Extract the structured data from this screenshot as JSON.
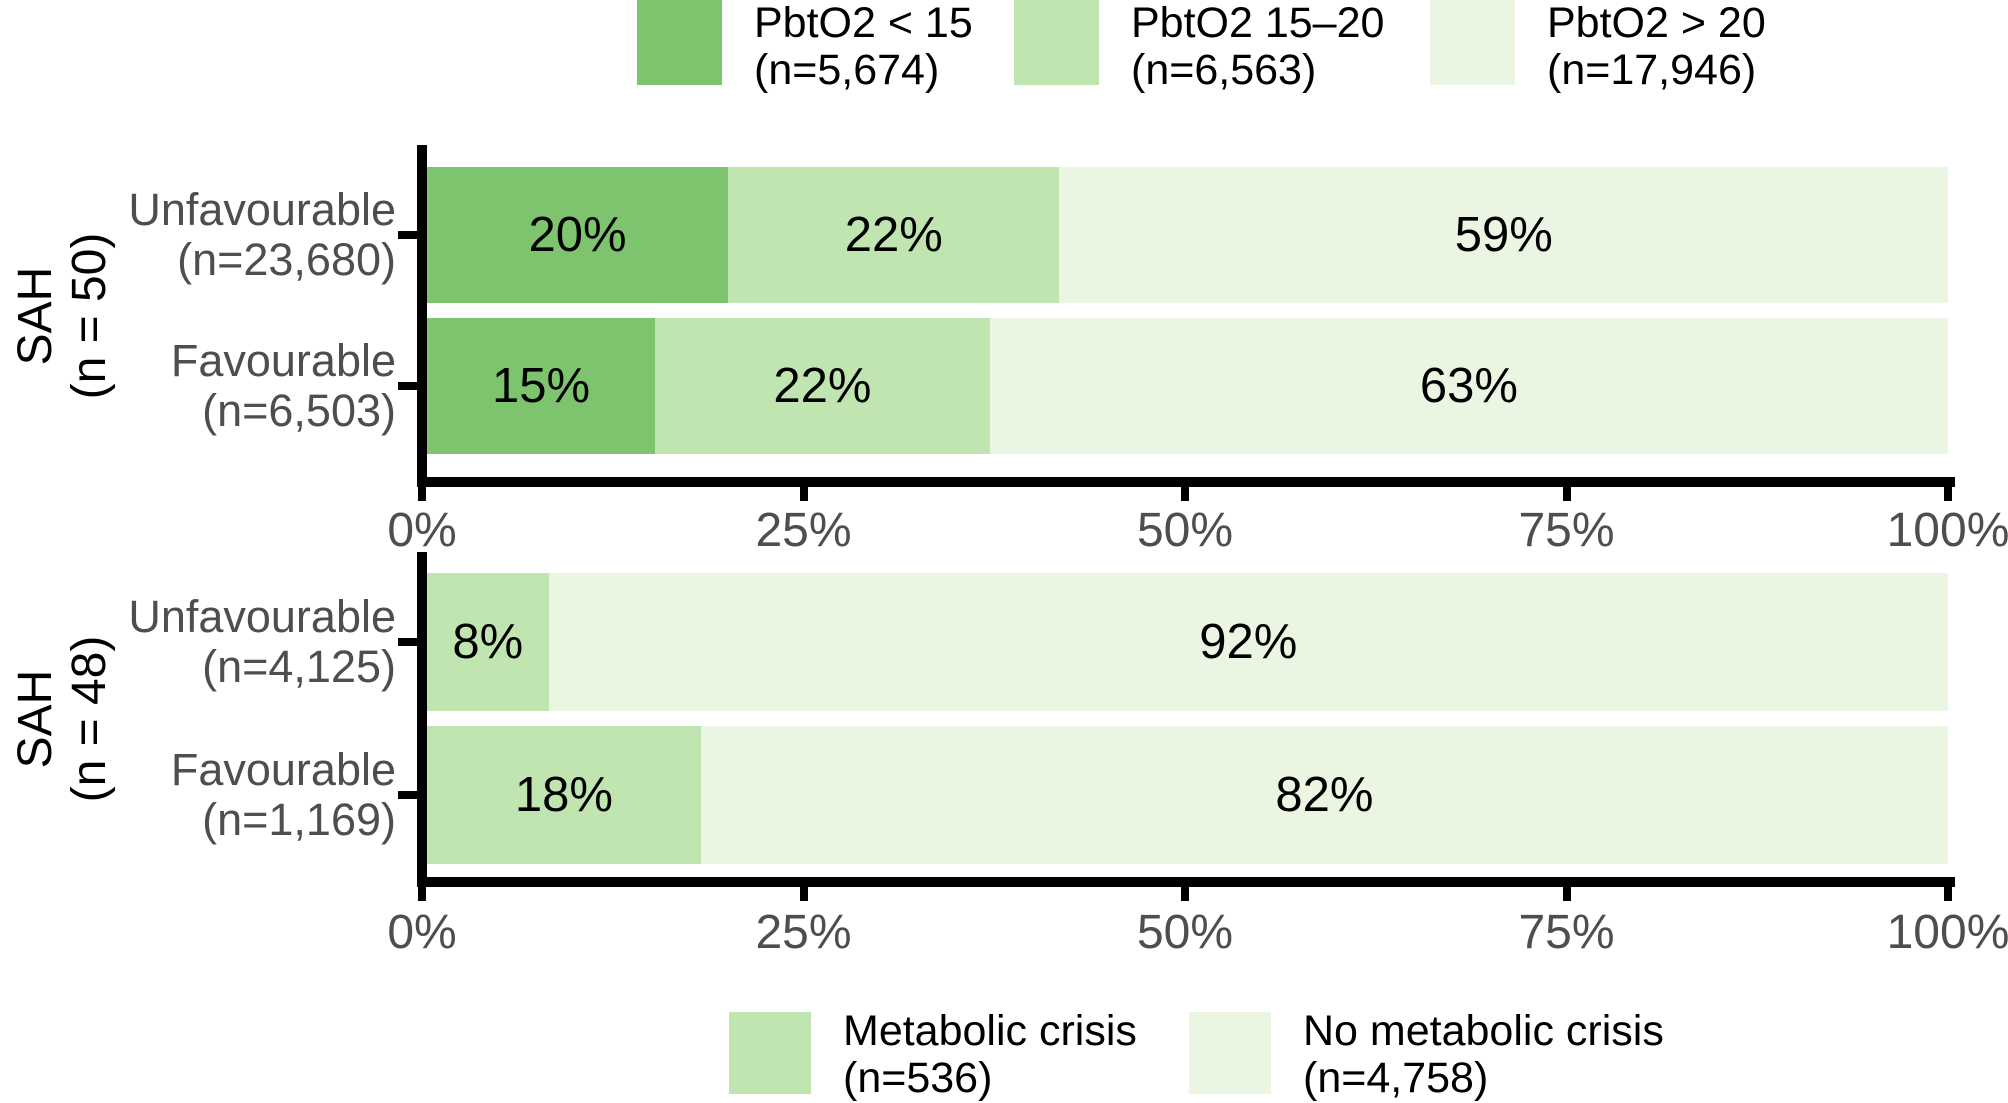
{
  "colors": {
    "pbto2_low": "#7ec46f",
    "pbto2_mid": "#c0e5b0",
    "pbto2_high": "#eaf5e2",
    "axis": "#000000",
    "muted_text": "#4e4e4e",
    "bar_label": "#000000",
    "background": "#ffffff"
  },
  "top_legend": [
    {
      "lines": [
        "PbtO2 < 15",
        "(n=5,674)"
      ],
      "color": "#7ec46f"
    },
    {
      "lines": [
        "PbtO2 15–20",
        "(n=6,563)"
      ],
      "color": "#c0e5b0"
    },
    {
      "lines": [
        "PbtO2 > 20",
        "(n=17,946)"
      ],
      "color": "#eaf5e2"
    }
  ],
  "bottom_legend": [
    {
      "lines": [
        "Metabolic crisis",
        "(n=536)"
      ],
      "color": "#c0e5b0"
    },
    {
      "lines": [
        "No metabolic crisis",
        "(n=4,758)"
      ],
      "color": "#eaf5e2"
    }
  ],
  "chart_data": [
    {
      "type": "bar",
      "subtype": "horizontal_stacked_percent",
      "group_title_lines": [
        "SAH",
        "(n = 50)"
      ],
      "categories": [
        [
          "Unfavourable",
          "(n=23,680)"
        ],
        [
          "Favourable",
          "(n=6,503)"
        ]
      ],
      "series": [
        {
          "name": "PbtO2 < 15 (n=5,674)",
          "color": "#7ec46f",
          "values": [
            20,
            15
          ]
        },
        {
          "name": "PbtO2 15–20 (n=6,563)",
          "color": "#c0e5b0",
          "values": [
            22,
            22
          ]
        },
        {
          "name": "PbtO2 > 20 (n=17,946)",
          "color": "#eaf5e2",
          "values": [
            59,
            63
          ]
        }
      ],
      "value_suffix": "%",
      "xlim": [
        0,
        100
      ],
      "x_ticks": [
        {
          "pos": 0,
          "label": "0%"
        },
        {
          "pos": 25,
          "label": "25%"
        },
        {
          "pos": 50,
          "label": "50%"
        },
        {
          "pos": 75,
          "label": "75%"
        },
        {
          "pos": 100,
          "label": "100%"
        }
      ]
    },
    {
      "type": "bar",
      "subtype": "horizontal_stacked_percent",
      "group_title_lines": [
        "SAH",
        "(n = 48)"
      ],
      "categories": [
        [
          "Unfavourable",
          "(n=4,125)"
        ],
        [
          "Favourable",
          "(n=1,169)"
        ]
      ],
      "series": [
        {
          "name": "Metabolic crisis (n=536)",
          "color": "#c0e5b0",
          "values": [
            8,
            18
          ]
        },
        {
          "name": "No metabolic crisis (n=4,758)",
          "color": "#eaf5e2",
          "values": [
            92,
            82
          ]
        }
      ],
      "value_suffix": "%",
      "xlim": [
        0,
        100
      ],
      "x_ticks": [
        {
          "pos": 0,
          "label": "0%"
        },
        {
          "pos": 25,
          "label": "25%"
        },
        {
          "pos": 50,
          "label": "50%"
        },
        {
          "pos": 75,
          "label": "75%"
        },
        {
          "pos": 100,
          "label": "100%"
        }
      ]
    }
  ]
}
